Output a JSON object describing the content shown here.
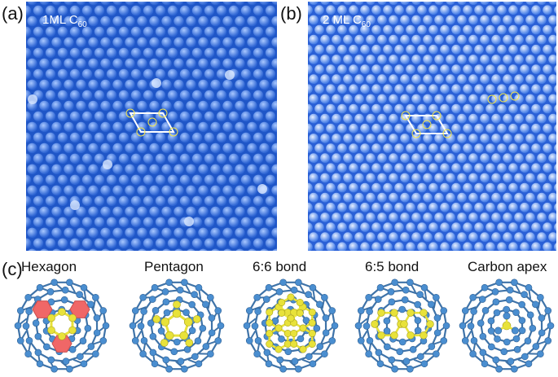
{
  "panels": {
    "a": {
      "label": "(a)",
      "title": "1ML C",
      "title_sub": "60"
    },
    "b": {
      "label": "(b)",
      "title": "2 ML C",
      "title_sub": "60"
    },
    "c": {
      "label": "(c)"
    }
  },
  "molecules": [
    {
      "label": "Hexagon",
      "highlight_color": "#f06767"
    },
    {
      "label": "Pentagon",
      "highlight_color": "#e8e23a"
    },
    {
      "label": "6:6 bond",
      "highlight_color": "#e8e23a"
    },
    {
      "label": "6:5 bond",
      "highlight_color": "#e8e23a"
    },
    {
      "label": "Carbon apex",
      "highlight_color": "#e8e23a"
    }
  ],
  "colors": {
    "stm_a_background": "#1f56c7",
    "stm_b_background": "#2a60d6",
    "molecule_atom": "#4a8ed0",
    "molecule_bond": "#3f73a8",
    "unit_cell": "#ffffff"
  }
}
